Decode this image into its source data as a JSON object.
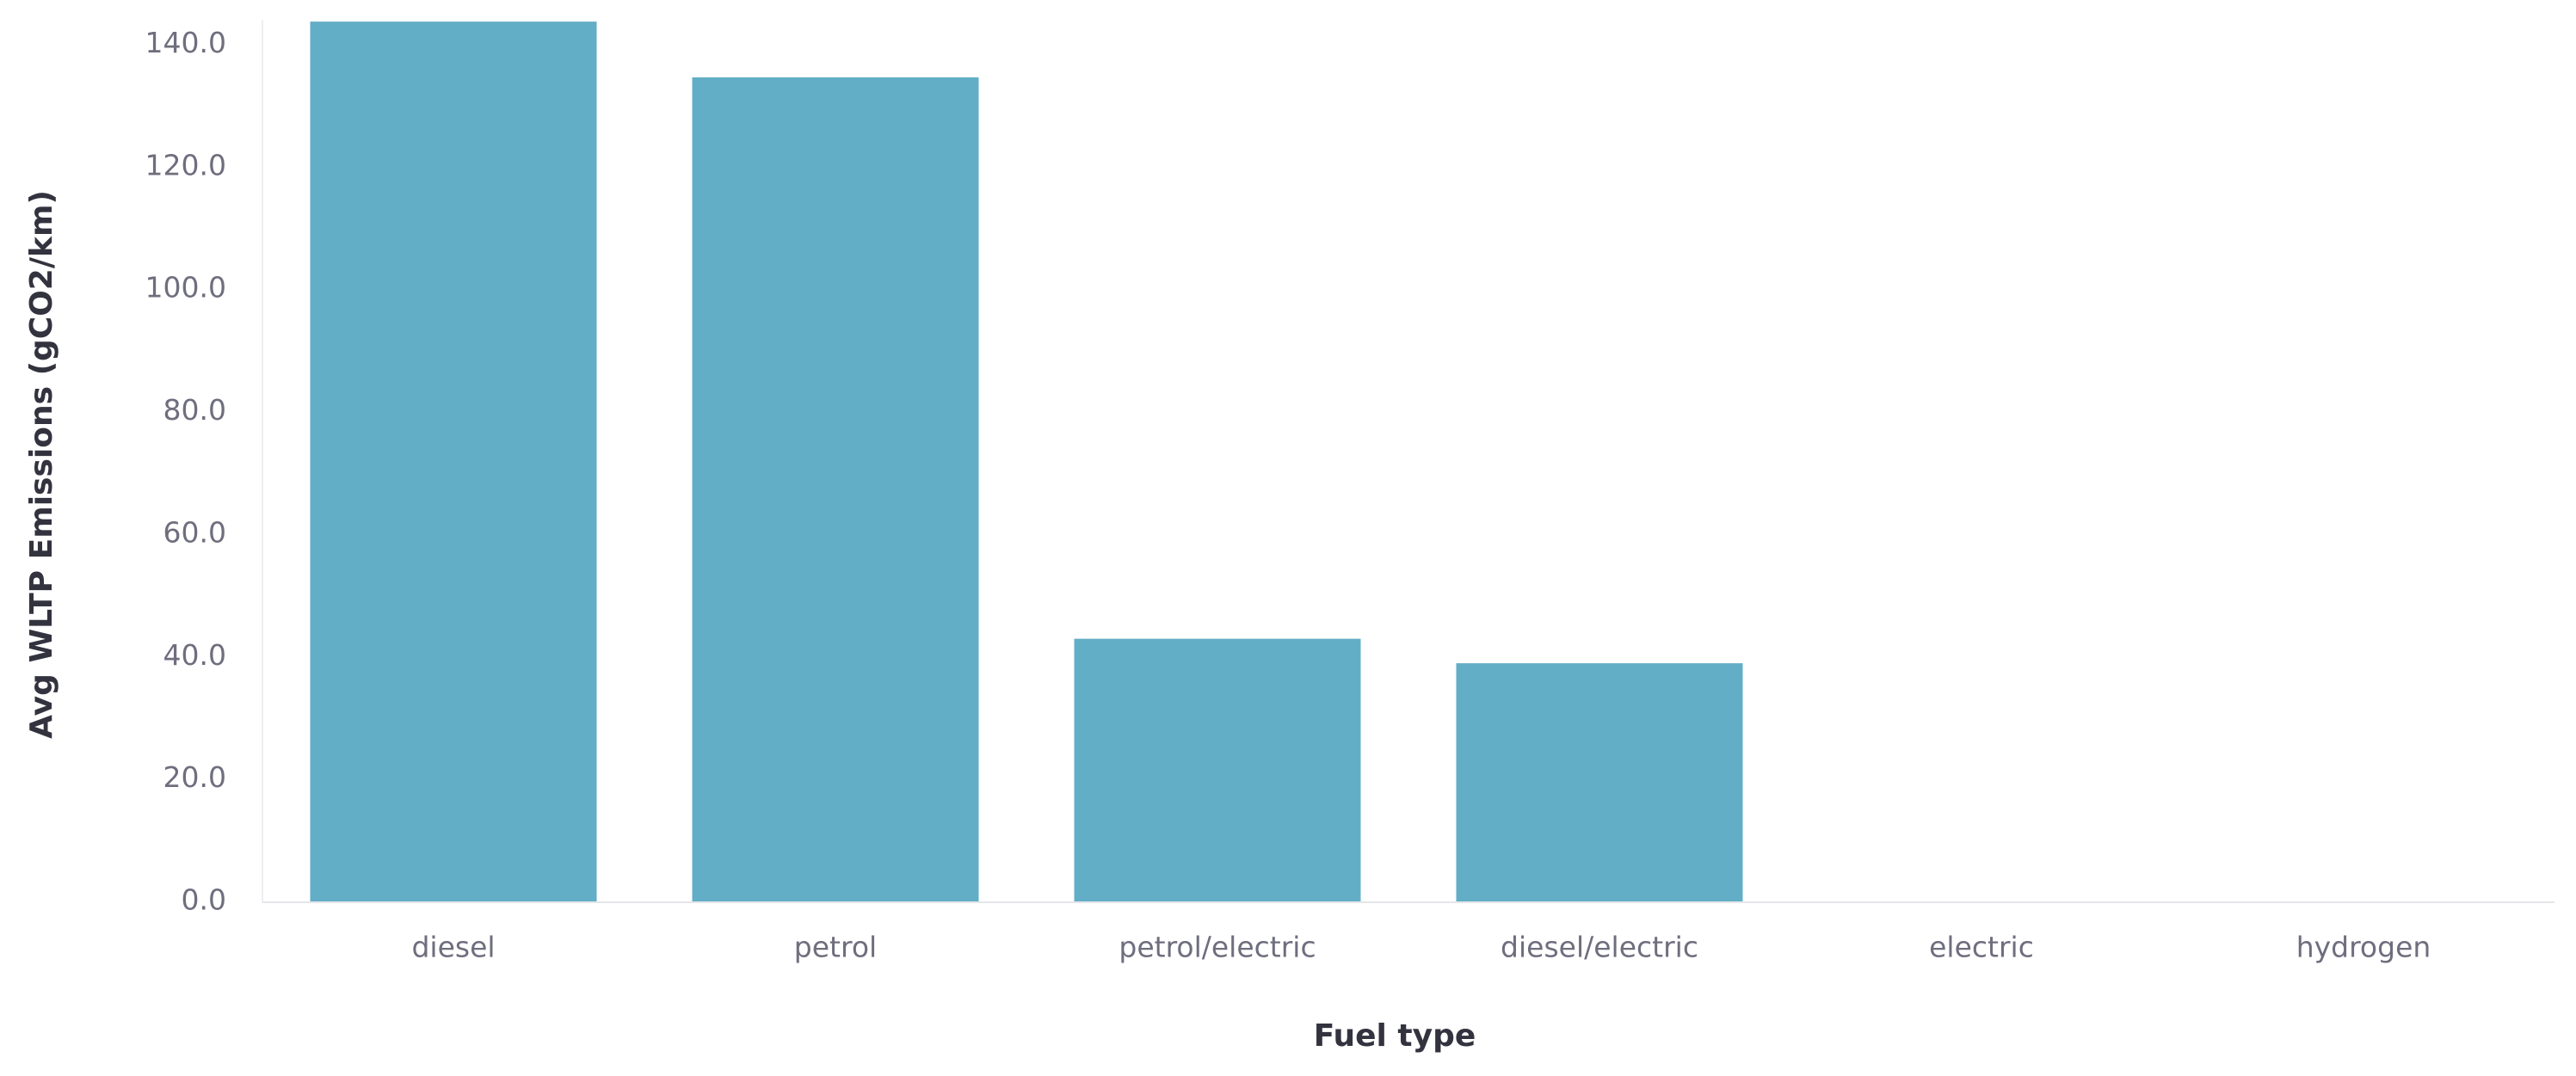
{
  "chart_data": {
    "type": "bar",
    "x_label": "Fuel type",
    "y_label": "Avg WLTP Emissions (gCO2/km)",
    "categories": [
      "diesel",
      "petrol",
      "petrol/electric",
      "diesel/electric",
      "electric",
      "hydrogen"
    ],
    "values": [
      143.7,
      134.6,
      42.9,
      38.9,
      0,
      0
    ],
    "color": "#63aec7",
    "ylim": [
      0,
      144
    ],
    "yticks": [
      {
        "value": 0,
        "label": "0.0"
      },
      {
        "value": 20,
        "label": "20.0"
      },
      {
        "value": 40,
        "label": "40.0"
      },
      {
        "value": 60,
        "label": "60.0"
      },
      {
        "value": 80,
        "label": "80.0"
      },
      {
        "value": 100,
        "label": "100.0"
      },
      {
        "value": 120,
        "label": "120.0"
      },
      {
        "value": 140,
        "label": "140.0"
      }
    ],
    "grid": false
  }
}
